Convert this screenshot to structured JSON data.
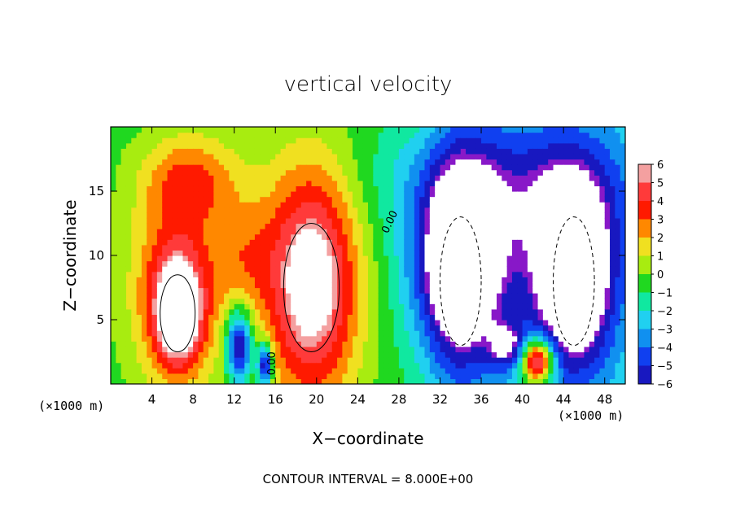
{
  "chart_data": {
    "type": "heatmap",
    "title": "vertical velocity",
    "xlabel": "X−coordinate",
    "ylabel": "Z−coordinate",
    "x_unit_left": "(×1000 m)",
    "x_unit_right": "(×1000 m)",
    "xlim": [
      0,
      50
    ],
    "ylim": [
      0,
      20
    ],
    "xticks": [
      4,
      8,
      12,
      16,
      20,
      24,
      28,
      32,
      36,
      40,
      44,
      48
    ],
    "yticks": [
      5,
      10,
      15
    ],
    "colorbar": {
      "levels": [
        6,
        5,
        4,
        3,
        2,
        1,
        0,
        -1,
        -2,
        -3,
        -4,
        -5,
        -6
      ],
      "labels": [
        "6",
        "5",
        "4",
        "3",
        "2",
        "1",
        "0",
        "−1",
        "−2",
        "−3",
        "−4",
        "−5",
        "−6"
      ]
    },
    "contour_interval_text": "CONTOUR INTERVAL = 8.000E+00",
    "contour_labels": [
      "0.00",
      "0.00"
    ],
    "features": [
      {
        "kind": "updraft",
        "x": 6.5,
        "z": 5.5,
        "peak": 8
      },
      {
        "kind": "updraft",
        "x": 19.5,
        "z": 7.5,
        "peak": 8
      },
      {
        "kind": "updraft",
        "x": 41.5,
        "z": 1.5,
        "peak": 6
      },
      {
        "kind": "downdraft",
        "x": 34,
        "z": 8,
        "peak": -8
      },
      {
        "kind": "downdraft",
        "x": 45,
        "z": 8,
        "peak": -8
      },
      {
        "kind": "downdraft",
        "x": 13,
        "z": 3,
        "peak": -6
      }
    ]
  }
}
